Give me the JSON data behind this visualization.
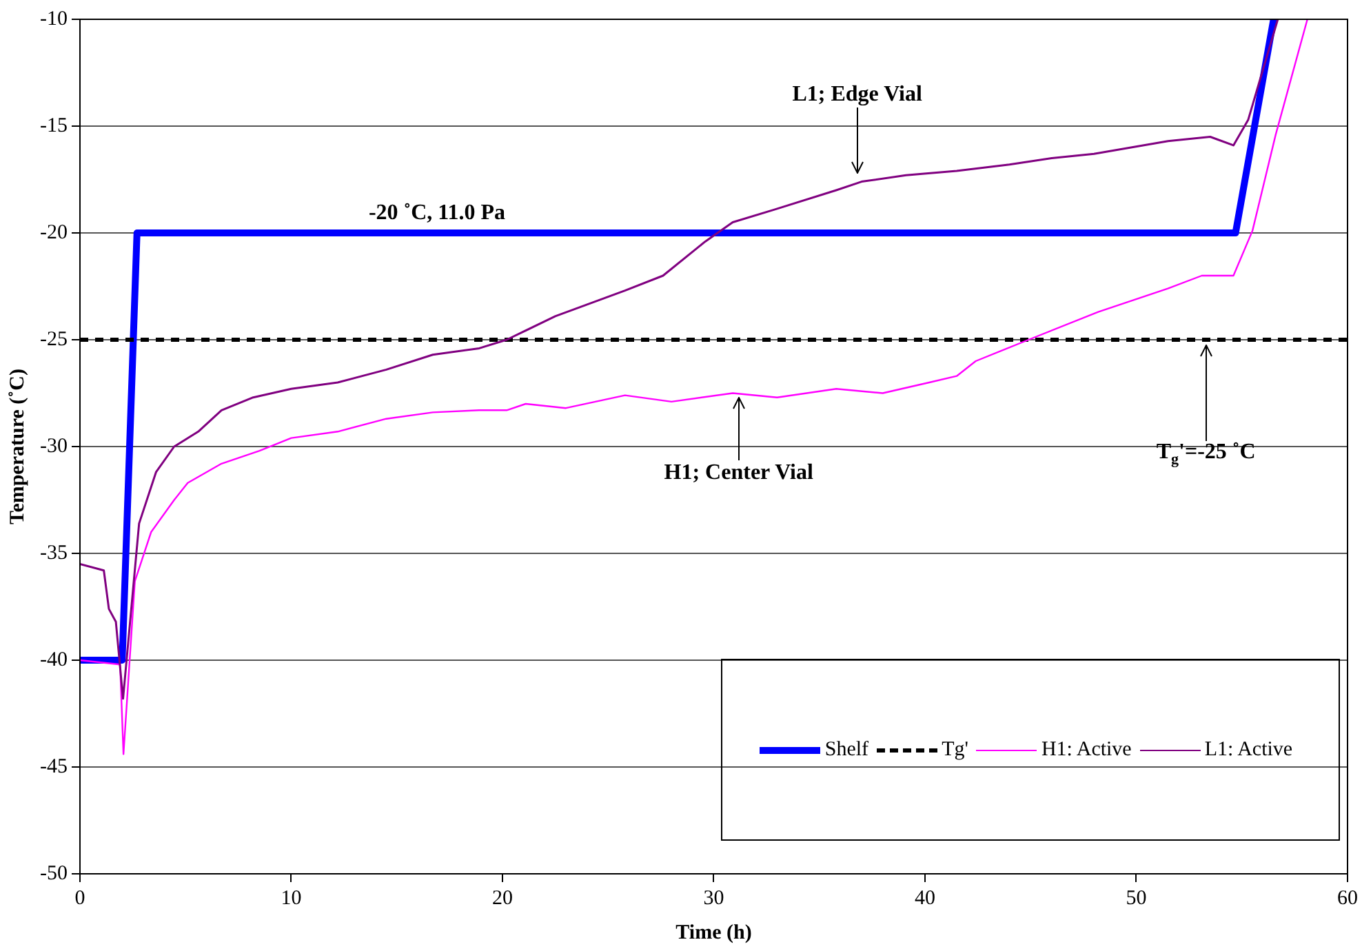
{
  "chart_data": {
    "type": "line",
    "xlabel": "Time (h)",
    "ylabel": "Temperature (˚C)",
    "xlim": [
      0,
      60
    ],
    "xticks": [
      0,
      10,
      20,
      30,
      40,
      50,
      60
    ],
    "ylim": [
      -50,
      -10
    ],
    "yticks": [
      -50,
      -45,
      -40,
      -35,
      -30,
      -25,
      -20,
      -15,
      -10
    ],
    "grid": "y",
    "legend": "bottom right",
    "marker": "none",
    "series": [
      {
        "name": "Shelf",
        "color": "#0000ff",
        "line_style": "solid",
        "x": [
          0,
          2,
          2.7,
          54.7,
          56.5
        ],
        "values": [
          -40,
          -40,
          -20,
          -20,
          -10
        ]
      },
      {
        "name": "Tg'",
        "color": "#000000",
        "line_style": "dashed",
        "x": [
          0,
          60
        ],
        "values": [
          -25,
          -25
        ]
      },
      {
        "name": "H1: Active",
        "color": "#ff00ff",
        "line_style": "solid",
        "x": [
          0,
          1.9,
          2.06,
          2.6,
          3.37,
          4.46,
          5.1,
          6.7,
          8.5,
          10,
          12.2,
          14.5,
          16.7,
          18.9,
          20.2,
          21.1,
          23,
          25.8,
          28,
          30.9,
          33,
          35.8,
          38,
          40.2,
          41.5,
          42.4,
          44.9,
          48.2,
          51.5,
          53.1,
          54.6,
          55.5,
          56.6,
          58.1
        ],
        "values": [
          -40,
          -40.2,
          -44.4,
          -36.3,
          -34,
          -32.5,
          -31.7,
          -30.8,
          -30.2,
          -29.6,
          -29.3,
          -28.7,
          -28.4,
          -28.3,
          -28.3,
          -28,
          -28.2,
          -27.6,
          -27.9,
          -27.5,
          -27.7,
          -27.3,
          -27.5,
          -27,
          -26.7,
          -26,
          -25,
          -23.7,
          -22.6,
          -22,
          -22,
          -19.9,
          -15.4,
          -10
        ]
      },
      {
        "name": "L1: Active",
        "color": "#800080",
        "line_style": "solid",
        "x": [
          0,
          1.13,
          1.37,
          1.7,
          2.04,
          2.8,
          3.6,
          4.46,
          5.6,
          6.7,
          8.2,
          10,
          12.2,
          14.5,
          16.7,
          18.9,
          20.2,
          22.5,
          25.8,
          27.6,
          29.6,
          30.9,
          32.9,
          35.8,
          37,
          39.1,
          41.5,
          44,
          46,
          48,
          51.5,
          53.5,
          54.6,
          55.3,
          56.7
        ],
        "values": [
          -35.5,
          -35.8,
          -37.6,
          -38.2,
          -41.8,
          -33.6,
          -31.2,
          -30,
          -29.3,
          -28.3,
          -27.7,
          -27.3,
          -27,
          -26.4,
          -25.7,
          -25.4,
          -25,
          -23.9,
          -22.7,
          -22,
          -20.4,
          -19.5,
          -18.9,
          -18,
          -17.6,
          -17.3,
          -17.1,
          -16.8,
          -16.5,
          -16.3,
          -15.7,
          -15.5,
          -15.9,
          -14.7,
          -10
        ]
      }
    ],
    "annotations": [
      {
        "text": "-20 ˚C, 11.0 Pa",
        "x": 16.9,
        "y": -20
      },
      {
        "text": "L1; Edge Vial",
        "x": 36.8,
        "y": -17.4
      },
      {
        "text": "H1; Center Vial",
        "x": 31.2,
        "y": -27.5
      },
      {
        "text": "T$_{g}$'=-25 ˚C",
        "x": 53.3,
        "y": -25
      }
    ]
  }
}
